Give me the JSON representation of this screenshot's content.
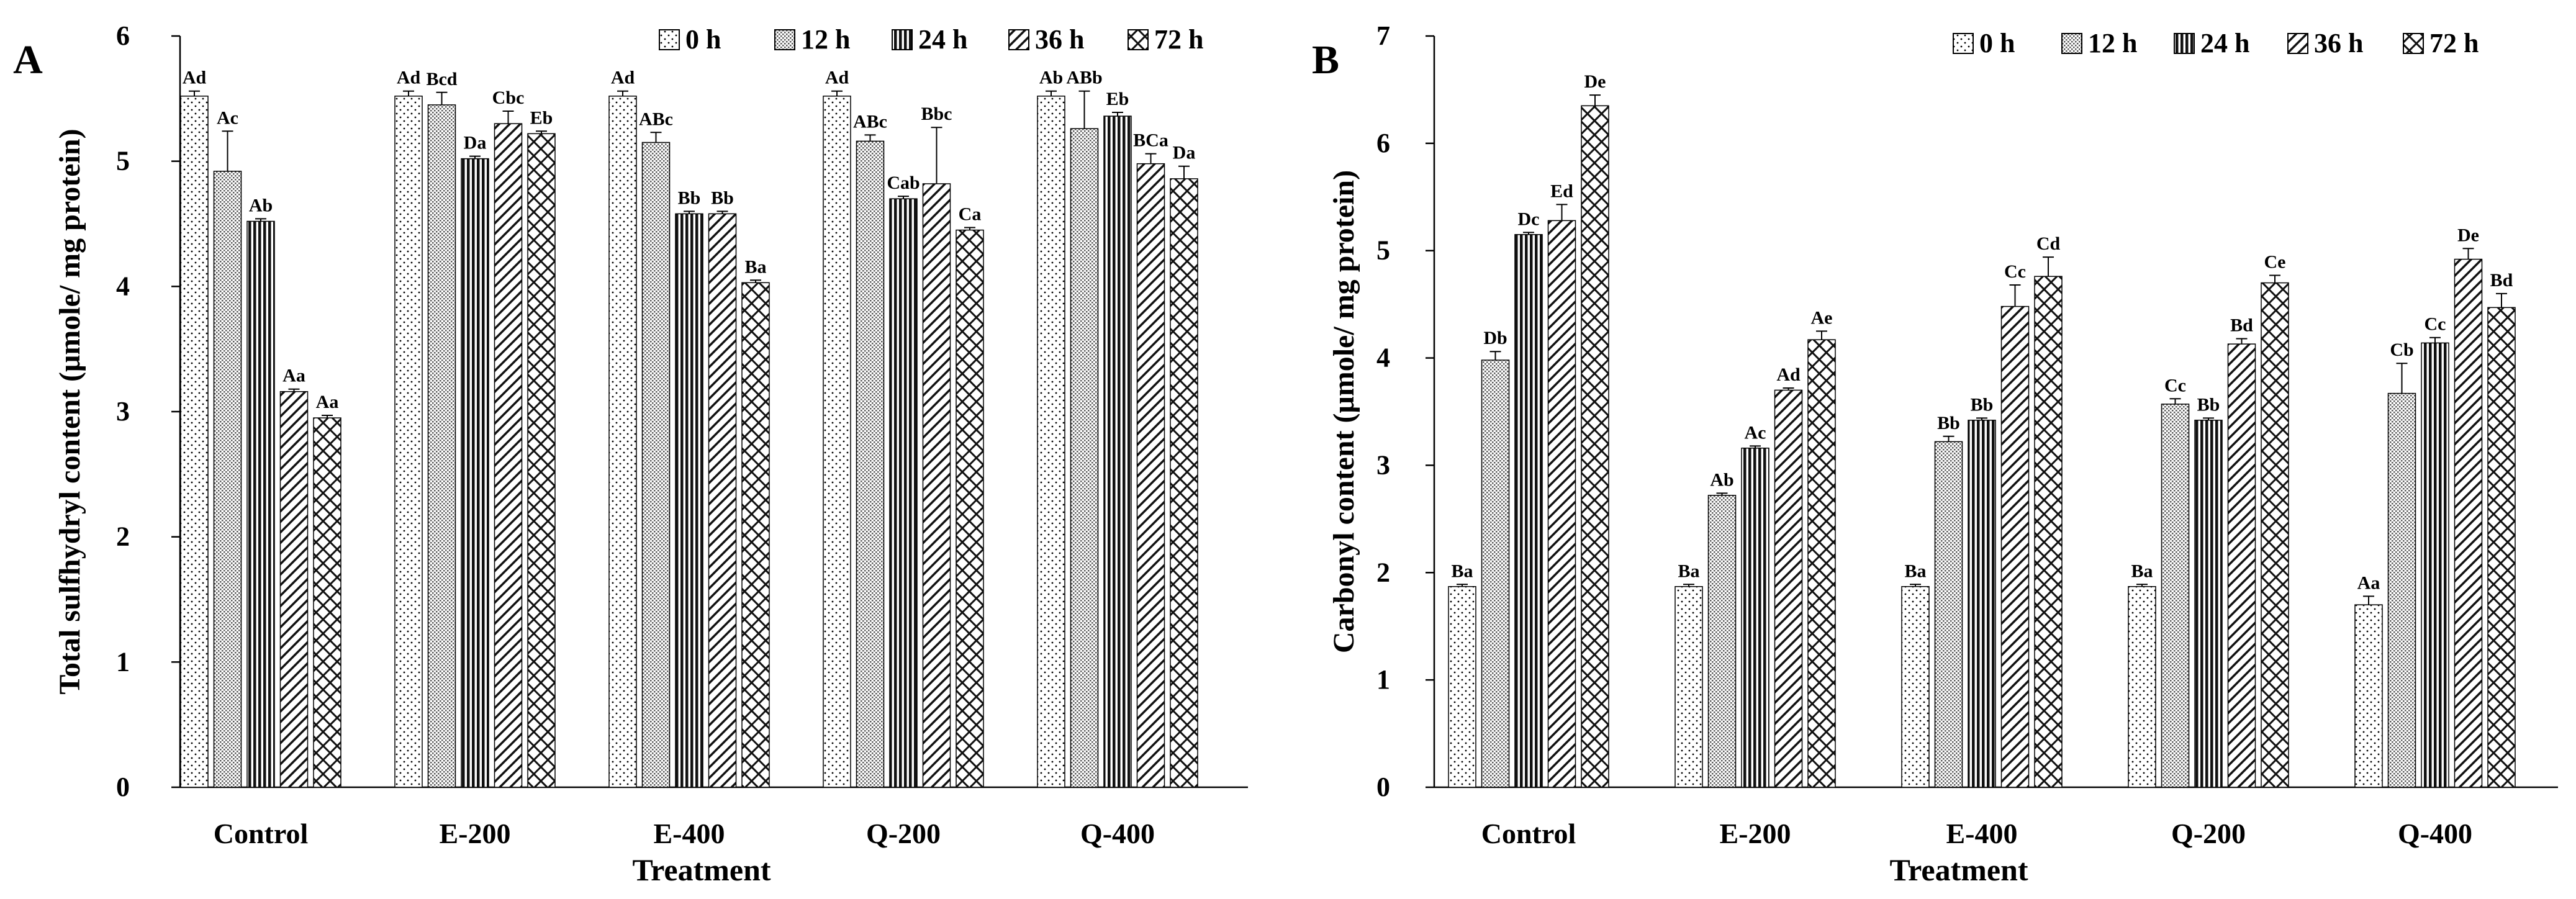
{
  "chart_data": [
    {
      "type": "bar",
      "panel_label": "A",
      "title": "",
      "xlabel": "Treatment",
      "ylabel": "Total sulfhydryl content (μmole/ mg protein)",
      "ylim": [
        0,
        6
      ],
      "yticks": [
        "0",
        "1",
        "2",
        "3",
        "4",
        "5",
        "6"
      ],
      "categories": [
        "Control",
        "E-200",
        "E-400",
        "Q-200",
        "Q-400"
      ],
      "legend_position": "top-right",
      "series": [
        {
          "name": "0 h",
          "pattern": "dots",
          "values": [
            5.52,
            5.52,
            5.52,
            5.52,
            5.52
          ],
          "errors": [
            0.04,
            0.04,
            0.04,
            0.04,
            0.04
          ],
          "labels": [
            "Ad",
            "Ad",
            "Ad",
            "Ad",
            "Ab"
          ]
        },
        {
          "name": "12 h",
          "pattern": "dense-dots",
          "values": [
            4.92,
            5.45,
            5.15,
            5.16,
            5.26
          ],
          "errors": [
            0.32,
            0.1,
            0.08,
            0.05,
            0.3
          ],
          "labels": [
            "Ac",
            "Bcd",
            "ABc",
            "ABc",
            "ABb"
          ]
        },
        {
          "name": "24 h",
          "pattern": "vlines",
          "values": [
            4.52,
            5.02,
            4.58,
            4.7,
            5.36
          ],
          "errors": [
            0.02,
            0.02,
            0.02,
            0.02,
            0.03
          ],
          "labels": [
            "Ab",
            "Da",
            "Bb",
            "Cab",
            "Eb"
          ]
        },
        {
          "name": "36 h",
          "pattern": "diag",
          "values": [
            3.16,
            5.3,
            4.58,
            4.82,
            4.98
          ],
          "errors": [
            0.02,
            0.1,
            0.02,
            0.45,
            0.08
          ],
          "labels": [
            "Aa",
            "Cbc",
            "Bb",
            "Bbc",
            "BCa"
          ]
        },
        {
          "name": "72 h",
          "pattern": "cross",
          "values": [
            2.95,
            5.22,
            4.03,
            4.45,
            4.86
          ],
          "errors": [
            0.02,
            0.02,
            0.02,
            0.02,
            0.1
          ],
          "labels": [
            "Aa",
            "Eb",
            "Ba",
            "Ca",
            "Da"
          ]
        }
      ]
    },
    {
      "type": "bar",
      "panel_label": "B",
      "title": "",
      "xlabel": "Treatment",
      "ylabel": "Carbonyl content (μmole/ mg protein)",
      "ylim": [
        0,
        7
      ],
      "yticks": [
        "0",
        "1",
        "2",
        "3",
        "4",
        "5",
        "6",
        "7"
      ],
      "categories": [
        "Control",
        "E-200",
        "E-400",
        "Q-200",
        "Q-400"
      ],
      "legend_position": "top-right",
      "series": [
        {
          "name": "0 h",
          "pattern": "dots",
          "values": [
            1.87,
            1.87,
            1.87,
            1.87,
            1.7
          ],
          "errors": [
            0.02,
            0.02,
            0.02,
            0.02,
            0.08
          ],
          "labels": [
            "Ba",
            "Ba",
            "Ba",
            "Ba",
            "Aa"
          ]
        },
        {
          "name": "12 h",
          "pattern": "dense-dots",
          "values": [
            3.98,
            2.72,
            3.22,
            3.57,
            3.67
          ],
          "errors": [
            0.08,
            0.02,
            0.05,
            0.05,
            0.28
          ],
          "labels": [
            "Db",
            "Ab",
            "Bb",
            "Cc",
            "Cb"
          ]
        },
        {
          "name": "24 h",
          "pattern": "vlines",
          "values": [
            5.15,
            3.16,
            3.42,
            3.42,
            4.14
          ],
          "errors": [
            0.02,
            0.02,
            0.02,
            0.02,
            0.05
          ],
          "labels": [
            "Dc",
            "Ac",
            "Bb",
            "Bb",
            "Cc"
          ]
        },
        {
          "name": "36 h",
          "pattern": "diag",
          "values": [
            5.28,
            3.7,
            4.48,
            4.13,
            4.92
          ],
          "errors": [
            0.15,
            0.02,
            0.2,
            0.05,
            0.1
          ],
          "labels": [
            "Ed",
            "Ad",
            "Cc",
            "Bd",
            "De"
          ]
        },
        {
          "name": "72 h",
          "pattern": "cross",
          "values": [
            6.35,
            4.17,
            4.76,
            4.7,
            4.47
          ],
          "errors": [
            0.1,
            0.08,
            0.18,
            0.07,
            0.13
          ],
          "labels": [
            "De",
            "Ae",
            "Cd",
            "Ce",
            "Bd"
          ]
        }
      ]
    }
  ]
}
